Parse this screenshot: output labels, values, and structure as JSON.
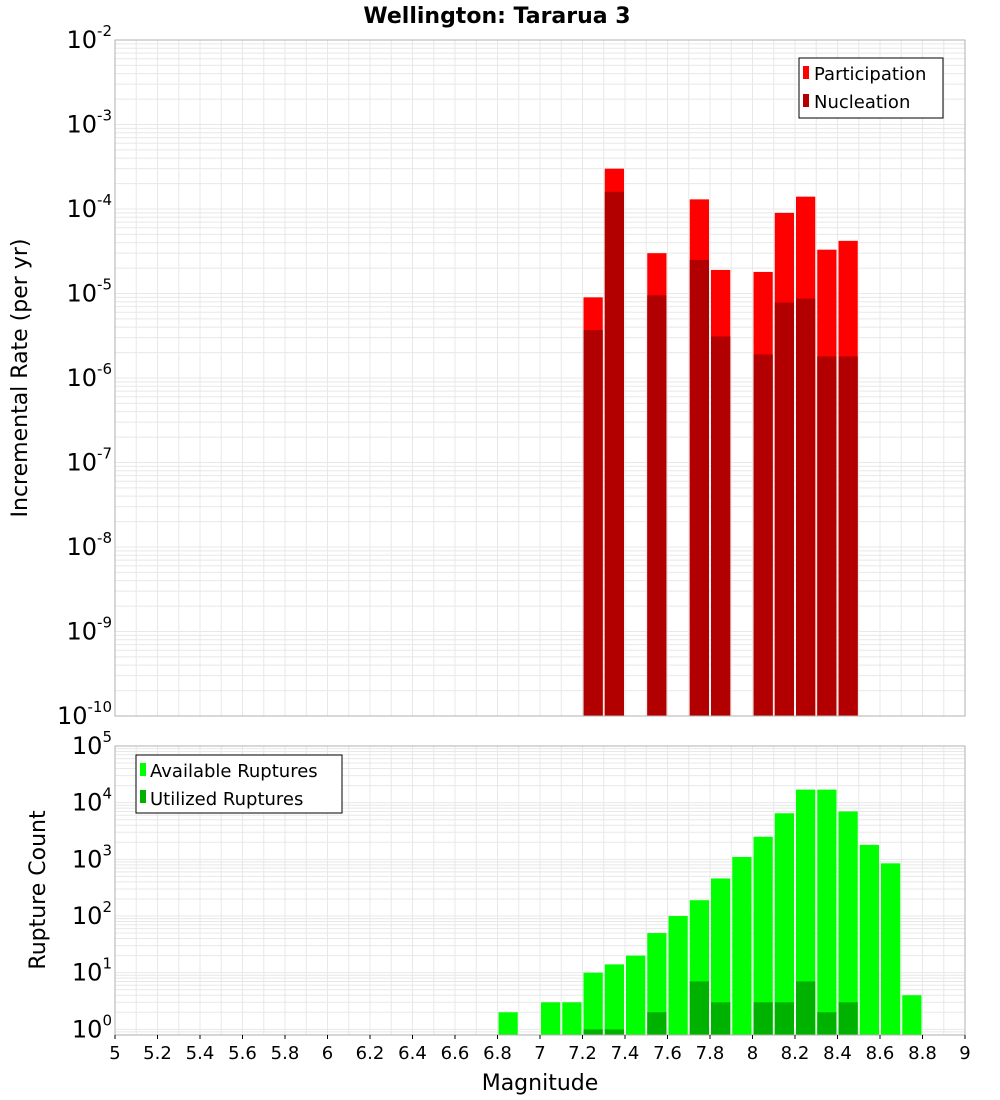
{
  "colors": {
    "participation": "#ff0000",
    "nucleation": "#b20000",
    "available": "#00ff00",
    "utilized": "#00b200",
    "grid": "#e8e8e8",
    "frame": "#b0b0b0"
  },
  "chart_data": [
    {
      "type": "bar",
      "title": "Wellington: Tararua 3",
      "xlabel": "",
      "ylabel": "Incremental Rate (per yr)",
      "scale": "log",
      "xlim": [
        5,
        9
      ],
      "ylim_exponents": [
        -10,
        -2
      ],
      "y_tick_base": "10",
      "y_tick_exponents": [
        "-10",
        "-9",
        "-8",
        "-7",
        "-6",
        "-5",
        "-4",
        "-3",
        "-2"
      ],
      "legend_position": "top-right",
      "series": [
        {
          "name": "Participation",
          "x": [
            7.25,
            7.35,
            7.55,
            7.75,
            7.85,
            8.05,
            8.15,
            8.25,
            8.35,
            8.45
          ],
          "values": [
            9e-06,
            0.0003,
            3e-05,
            0.00013,
            1.9e-05,
            1.8e-05,
            9e-05,
            0.00014,
            3.3e-05,
            4.2e-05
          ]
        },
        {
          "name": "Nucleation",
          "x": [
            7.25,
            7.35,
            7.55,
            7.75,
            7.85,
            8.05,
            8.15,
            8.25,
            8.35,
            8.45
          ],
          "values": [
            3.7e-06,
            0.00016,
            9.5e-06,
            2.5e-05,
            3.1e-06,
            1.9e-06,
            7.8e-06,
            8.7e-06,
            1.8e-06,
            1.8e-06
          ]
        }
      ]
    },
    {
      "type": "bar",
      "title": "",
      "xlabel": "Magnitude",
      "ylabel": "Rupture Count",
      "scale": "log",
      "xlim": [
        5,
        9
      ],
      "ylim_exponents": [
        -0.1,
        5
      ],
      "y_tick_base": "10",
      "y_tick_exponents": [
        "0",
        "1",
        "2",
        "3",
        "4",
        "5"
      ],
      "x_ticks": [
        "5",
        "5.2",
        "5.4",
        "5.6",
        "5.8",
        "6",
        "6.2",
        "6.4",
        "6.6",
        "6.8",
        "7",
        "7.2",
        "7.4",
        "7.6",
        "7.8",
        "8",
        "8.2",
        "8.4",
        "8.6",
        "8.8",
        "9"
      ],
      "legend_position": "top-left",
      "series": [
        {
          "name": "Available Ruptures",
          "x": [
            6.85,
            7.05,
            7.15,
            7.25,
            7.35,
            7.45,
            7.55,
            7.65,
            7.75,
            7.85,
            7.95,
            8.05,
            8.15,
            8.25,
            8.35,
            8.45,
            8.55,
            8.65,
            8.75
          ],
          "values": [
            2,
            3,
            3,
            10,
            14,
            20,
            50,
            100,
            190,
            460,
            1100,
            2500,
            6500,
            17000,
            17000,
            7000,
            1800,
            850,
            4
          ]
        },
        {
          "name": "Utilized Ruptures",
          "x": [
            7.25,
            7.35,
            7.55,
            7.75,
            7.85,
            8.05,
            8.15,
            8.25,
            8.35,
            8.45
          ],
          "values": [
            1,
            1,
            2,
            7,
            3,
            3,
            3,
            7,
            2,
            3
          ]
        }
      ]
    }
  ]
}
